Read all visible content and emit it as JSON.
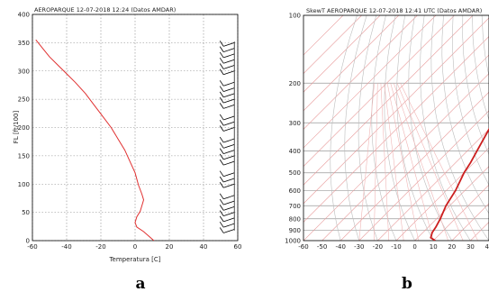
{
  "chart_data": [
    {
      "type": "line",
      "panel_label": "a",
      "title": "AEROPARQUE 12-07-2018  12:24  (Datos AMDAR)",
      "xlabel": "Temperatura [C]",
      "ylabel": "FL [ft/100]",
      "xlim": [
        -60,
        60
      ],
      "ylim": [
        0,
        400
      ],
      "xticks": [
        "-60",
        "-40",
        "-20",
        "0",
        "20",
        "40",
        "60"
      ],
      "yticks": [
        "0",
        "50",
        "100",
        "150",
        "200",
        "250",
        "300",
        "350",
        "400"
      ],
      "grid": true,
      "series": [
        {
          "color": "#e03030",
          "x": [
            11,
            8,
            5,
            1,
            0,
            1,
            3,
            4,
            5,
            4,
            2,
            0,
            -3,
            -6,
            -10,
            -14,
            -19,
            -24,
            -29,
            -35,
            -40,
            -45,
            -50,
            -54,
            -58
          ],
          "y": [
            0,
            8,
            16,
            24,
            32,
            42,
            52,
            62,
            72,
            82,
            98,
            120,
            140,
            160,
            180,
            200,
            220,
            240,
            260,
            280,
            295,
            310,
            325,
            340,
            355
          ]
        }
      ],
      "wind_barbs_x": 58,
      "wind_barb_levels": [
        20,
        30,
        40,
        50,
        60,
        70,
        80,
        100,
        110,
        120,
        140,
        150,
        160,
        170,
        180,
        200,
        210,
        220,
        240,
        250,
        260,
        270,
        280,
        300,
        310,
        320,
        330,
        340,
        350
      ]
    },
    {
      "type": "line",
      "panel_label": "b",
      "title": "SkewT    AEROPARQUE 12-07-2018 12:41 UTC  (Datos AMDAR)",
      "xlim": [
        -60,
        40
      ],
      "plim": [
        1000,
        100
      ],
      "xticks": [
        "-60",
        "-50",
        "-40",
        "-30",
        "-20",
        "-10",
        "0",
        "10",
        "20",
        "30",
        "40"
      ],
      "yticks": [
        "100",
        "200",
        "300",
        "400",
        "500",
        "600",
        "700",
        "800",
        "900",
        "1000"
      ],
      "series": [
        {
          "color": "#cc1f1f",
          "temperature": [
            11,
            7,
            5,
            4,
            2,
            -2,
            -5,
            -10,
            -12,
            -16,
            -20,
            -22,
            -26
          ],
          "pressure": [
            1000,
            970,
            920,
            870,
            800,
            700,
            600,
            500,
            450,
            380,
            320,
            270,
            245
          ]
        }
      ]
    }
  ]
}
